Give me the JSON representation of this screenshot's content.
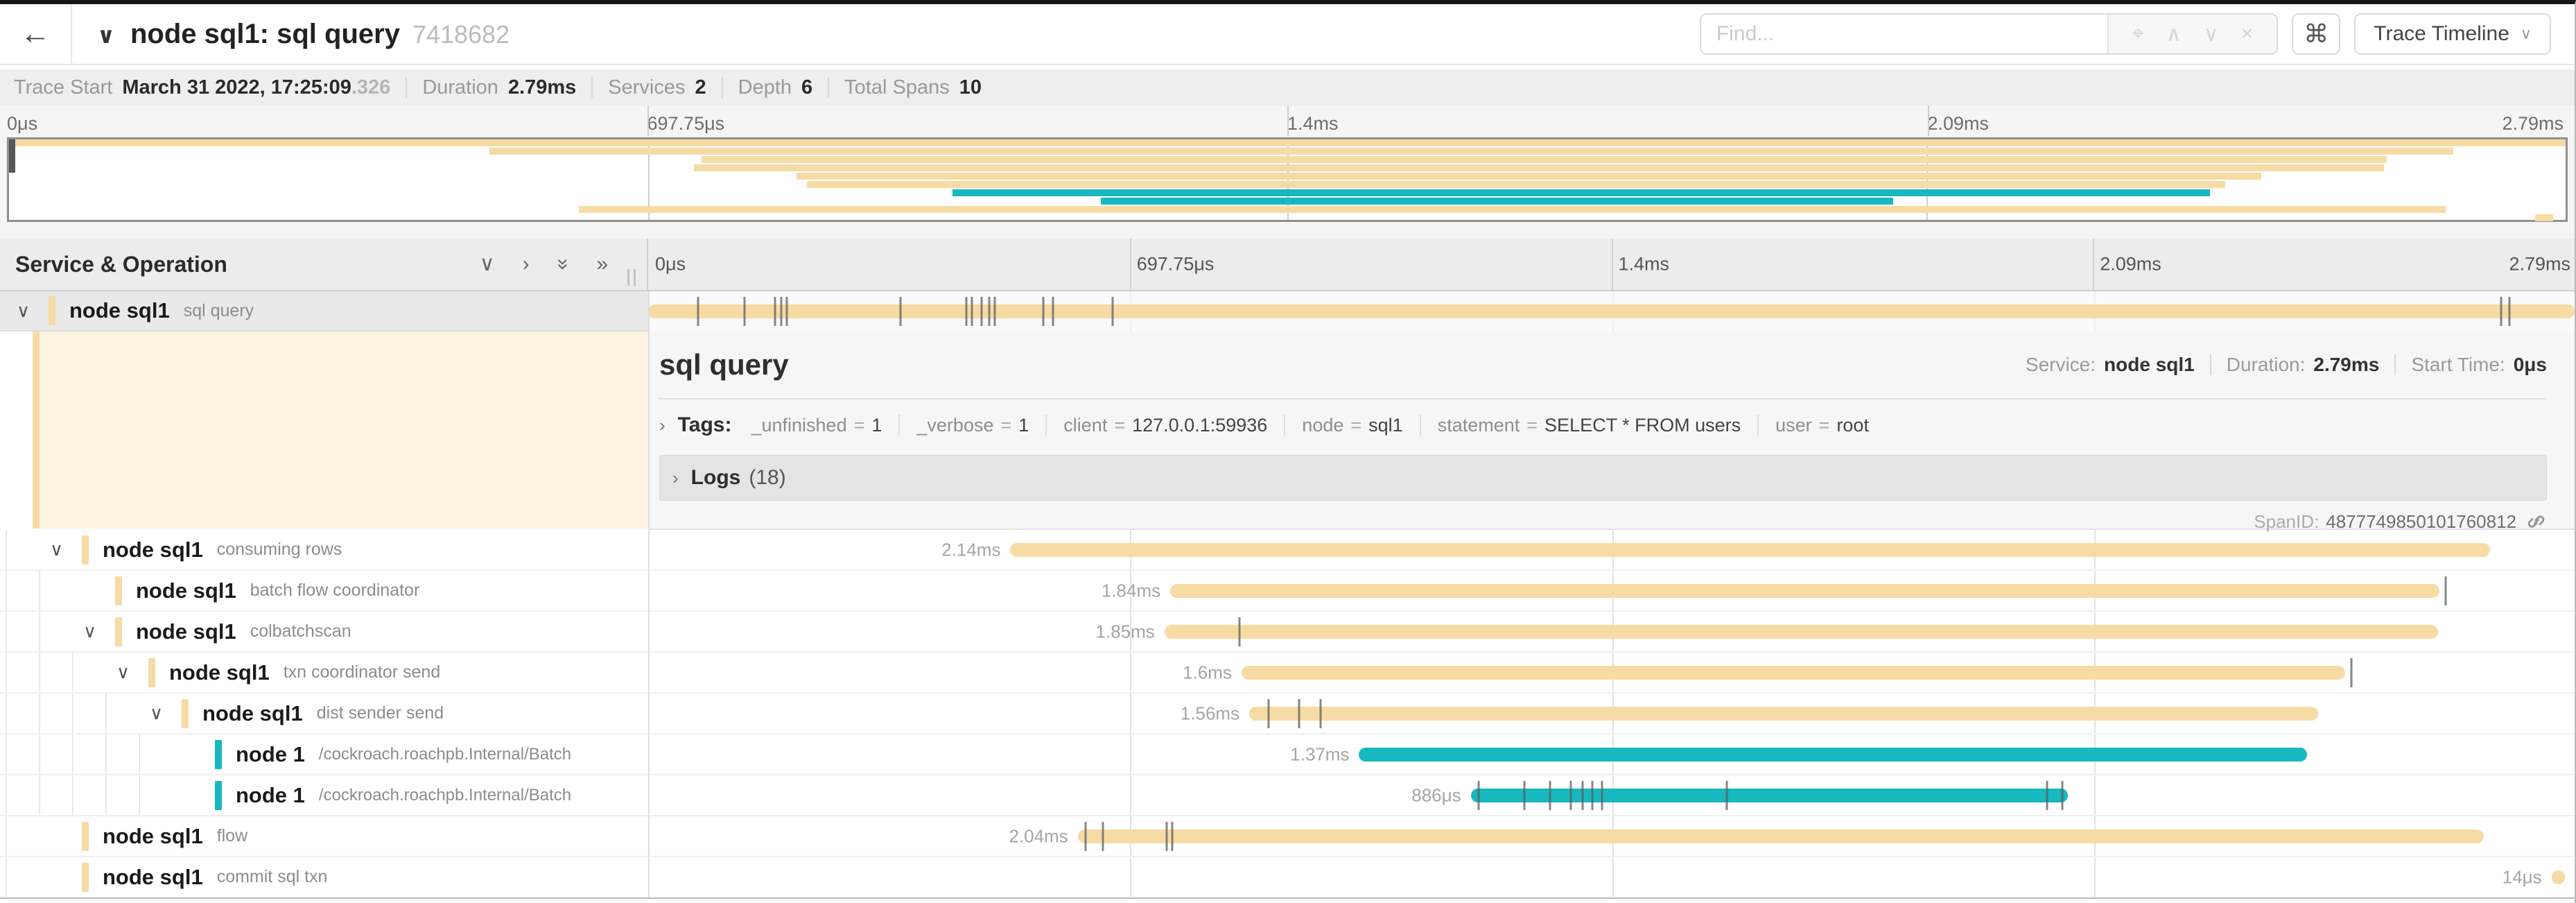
{
  "header": {
    "back_icon": "←",
    "collapse_caret": "∨",
    "title": "node sql1: sql query",
    "trace_id": "7418682",
    "find_placeholder": "Find...",
    "shortcut_icon": "⌘",
    "view_selector_label": "Trace Timeline",
    "view_selector_caret": "∨"
  },
  "summary": {
    "items": [
      {
        "label": "Trace Start",
        "value": "March 31 2022, 17:25:09",
        "suffix": ".326"
      },
      {
        "label": "Duration",
        "value": "2.79ms"
      },
      {
        "label": "Services",
        "value": "2"
      },
      {
        "label": "Depth",
        "value": "6"
      },
      {
        "label": "Total Spans",
        "value": "10"
      }
    ]
  },
  "ruler": {
    "ticks": [
      "0μs",
      "697.75μs",
      "1.4ms",
      "2.09ms",
      "2.79ms"
    ],
    "positions": [
      0,
      25,
      50,
      75,
      100
    ]
  },
  "sidebar": {
    "title": "Service & Operation"
  },
  "colors": {
    "tan": "#f6dba4",
    "teal": "#17b8be"
  },
  "root_span": {
    "service": "node sql1",
    "operation": "sql query",
    "color": "#f6dba4",
    "start": 0,
    "width": 100,
    "ticks": [
      2.6,
      5.0,
      6.6,
      6.9,
      7.2,
      13.1,
      16.5,
      16.8,
      17.3,
      17.7,
      18.0,
      20.5,
      21.0,
      24.1,
      96.2,
      96.6
    ]
  },
  "detail": {
    "title": "sql query",
    "meta": [
      {
        "label": "Service:",
        "value": "node sql1"
      },
      {
        "label": "Duration:",
        "value": "2.79ms"
      },
      {
        "label": "Start Time:",
        "value": "0μs"
      }
    ],
    "caret": "›",
    "tags_label": "Tags:",
    "tags": [
      {
        "key": "_unfinished",
        "value": "1"
      },
      {
        "key": "_verbose",
        "value": "1"
      },
      {
        "key": "client",
        "value": "127.0.0.1:59936"
      },
      {
        "key": "node",
        "value": "sql1"
      },
      {
        "key": "statement",
        "value": "SELECT * FROM users"
      },
      {
        "key": "user",
        "value": "root"
      }
    ],
    "logs_label": "Logs",
    "logs_count": "(18)",
    "span_id_label": "SpanID:",
    "span_id": "4877749850101760812"
  },
  "spans": [
    {
      "service": "node sql1",
      "operation": "consuming rows",
      "color": "#f6dba4",
      "depth": 1,
      "chevron": "∨",
      "duration": "2.14ms",
      "start": 18.8,
      "width": 76.8,
      "ticks": []
    },
    {
      "service": "node sql1",
      "operation": "batch flow coordinator",
      "color": "#f6dba4",
      "depth": 2,
      "chevron": "",
      "duration": "1.84ms",
      "start": 27.1,
      "width": 65.9,
      "ticks": [
        93.3
      ]
    },
    {
      "service": "node sql1",
      "operation": "colbatchscan",
      "color": "#f6dba4",
      "depth": 2,
      "chevron": "∨",
      "duration": "1.85ms",
      "start": 26.8,
      "width": 66.1,
      "ticks": [
        30.7
      ]
    },
    {
      "service": "node sql1",
      "operation": "txn coordinator send",
      "color": "#f6dba4",
      "depth": 3,
      "chevron": "∨",
      "duration": "1.6ms",
      "start": 30.8,
      "width": 57.3,
      "ticks": [
        88.4
      ]
    },
    {
      "service": "node sql1",
      "operation": "dist sender send",
      "color": "#f6dba4",
      "depth": 4,
      "chevron": "∨",
      "duration": "1.56ms",
      "start": 31.2,
      "width": 55.5,
      "ticks": [
        32.2,
        33.8,
        34.9
      ]
    },
    {
      "service": "node 1",
      "operation": "/cockroach.roachpb.Internal/Batch",
      "color": "#17b8be",
      "depth": 5,
      "chevron": "",
      "duration": "1.37ms",
      "start": 36.9,
      "width": 49.2,
      "ticks": []
    },
    {
      "service": "node 1",
      "operation": "/cockroach.roachpb.Internal/Batch",
      "color": "#17b8be",
      "depth": 5,
      "chevron": "",
      "duration": "886μs",
      "start": 42.7,
      "width": 31.0,
      "ticks": [
        43.1,
        45.5,
        46.8,
        47.9,
        48.5,
        49.0,
        49.5,
        56.0,
        72.6,
        73.4
      ]
    },
    {
      "service": "node sql1",
      "operation": "flow",
      "color": "#f6dba4",
      "depth": 1,
      "chevron": "",
      "duration": "2.04ms",
      "start": 22.3,
      "width": 73.0,
      "ticks": [
        22.7,
        23.6,
        26.9,
        27.2
      ]
    },
    {
      "service": "node sql1",
      "operation": "commit sql txn",
      "color": "#f6dba4",
      "depth": 1,
      "chevron": "",
      "duration": "14μs",
      "start": 98.8,
      "width": 0.7,
      "ticks": []
    }
  ],
  "sidebar_icons": [
    "∨",
    "›",
    "»down",
    "»"
  ]
}
